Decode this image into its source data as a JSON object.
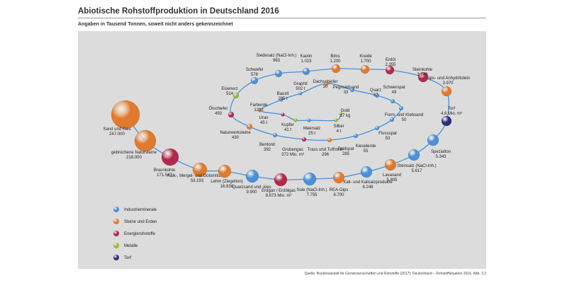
{
  "chart_data": {
    "type": "bubble-spiral",
    "title": "Abiotische Rohstoffproduktion in Deutschland 2016",
    "subtitle": "Angaben in Tausend Tonnen, soweit nicht anders gekennzeichnet",
    "source": "Quelle: Bundesanstalt für Geowissenschaften und Rohstoffe (2017): Deutschland – Rohstoffsituation 2016, Abb. 3.2",
    "colors": {
      "Industrieminerale": "#4a90d9",
      "Steine und Erden": "#e07a2e",
      "Energierohstoffe": "#b22a4a",
      "Metalle": "#9ab832",
      "Torf": "#2e2e7a"
    },
    "legend": [
      {
        "label": "Industrieminerale",
        "category": "Industrieminerale"
      },
      {
        "label": "Steine und Erden",
        "category": "Steine und Erden"
      },
      {
        "label": "Energierohstoffe",
        "category": "Energierohstoffe"
      },
      {
        "label": "Metalle",
        "category": "Metalle"
      },
      {
        "label": "Torf",
        "category": "Torf"
      }
    ],
    "points": [
      {
        "name": "Sand und Kies",
        "value": "247.000",
        "amount": 247000,
        "category": "Steine und Erden"
      },
      {
        "name": "gebrochene Natursteine",
        "value": "218.000",
        "amount": 218000,
        "category": "Steine und Erden"
      },
      {
        "name": "Braunkohle",
        "value": "171.547",
        "amount": 171547,
        "category": "Energierohstoffe"
      },
      {
        "name": "Kalk-, Mergel- und Dolomitstein",
        "value": "53.193",
        "amount": 53193,
        "category": "Steine und Erden"
      },
      {
        "name": "Lehm (Ziegelton)",
        "value": "16.838",
        "amount": 16838,
        "category": "Steine und Erden"
      },
      {
        "name": "Quarzsand und -kies",
        "value": "9.900",
        "amount": 9900,
        "category": "Industrieminerale"
      },
      {
        "name": "Erdgas / Erdölgas",
        "value": "8.673 Mio. m³",
        "amount": 8673,
        "category": "Energierohstoffe"
      },
      {
        "name": "Sole (NaCl-Inh.)",
        "value": "7.755",
        "amount": 7755,
        "category": "Industrieminerale"
      },
      {
        "name": "REA-Gips",
        "value": "6.700",
        "amount": 6700,
        "category": "Steine und Erden"
      },
      {
        "name": "Kali- und Kalisalzprodukte",
        "value": "6.246",
        "amount": 6246,
        "category": "Industrieminerale"
      },
      {
        "name": "Lavasand",
        "value": "5.805",
        "amount": 5805,
        "category": "Steine und Erden"
      },
      {
        "name": "Steinsalz (NaCl-Inh.)",
        "value": "5.617",
        "amount": 5617,
        "category": "Industrieminerale"
      },
      {
        "name": "Spezialton",
        "value": "5.343",
        "amount": 5343,
        "category": "Industrieminerale"
      },
      {
        "name": "Torf",
        "value": "4,6 Mio. m³",
        "amount": 4600,
        "category": "Torf"
      },
      {
        "name": "Gips- und Anhydritstein",
        "value": "3.970",
        "amount": 3970,
        "category": "Steine und Erden"
      },
      {
        "name": "Steinkohle",
        "value": "3.849",
        "amount": 3849,
        "category": "Energierohstoffe"
      },
      {
        "name": "Erdöl",
        "value": "2.355",
        "amount": 2355,
        "category": "Energierohstoffe"
      },
      {
        "name": "Kreide",
        "value": "1.700",
        "amount": 1700,
        "category": "Steine und Erden"
      },
      {
        "name": "Bims",
        "value": "1.200",
        "amount": 1200,
        "category": "Steine und Erden"
      },
      {
        "name": "Kaolin",
        "value": "1.023",
        "amount": 1023,
        "category": "Industrieminerale"
      },
      {
        "name": "Siedesalz (NaCl-Inh.)",
        "value": "963",
        "amount": 963,
        "category": "Industrieminerale"
      },
      {
        "name": "Schwefel",
        "value": "578",
        "amount": 578,
        "category": "Industrieminerale"
      },
      {
        "name": "Eisenerz",
        "value": "514",
        "amount": 514,
        "category": "Metalle"
      },
      {
        "name": "Ölschiefer",
        "value": "493",
        "amount": 493,
        "category": "Energierohstoffe"
      },
      {
        "name": "Naturwerksteine",
        "value": "430",
        "amount": 430,
        "category": "Steine und Erden"
      },
      {
        "name": "Bentonit",
        "value": "392",
        "amount": 392,
        "category": "Industrieminerale"
      },
      {
        "name": "Grubengas",
        "value": "372 Mio. m³",
        "amount": 372,
        "category": "Energierohstoffe"
      },
      {
        "name": "Trass und Tuffstein",
        "value": "296",
        "amount": 296,
        "category": "Steine und Erden"
      },
      {
        "name": "Feldspat",
        "value": "285",
        "amount": 285,
        "category": "Industrieminerale"
      },
      {
        "name": "Kieselerde",
        "value": "55",
        "amount": 55,
        "category": "Industrieminerale"
      },
      {
        "name": "Flussspat",
        "value": "53",
        "amount": 53,
        "category": "Industrieminerale"
      },
      {
        "name": "Form- und Klebsand",
        "value": "50",
        "amount": 50,
        "category": "Industrieminerale"
      },
      {
        "name": "Schwerspat",
        "value": "49",
        "amount": 49,
        "category": "Industrieminerale"
      },
      {
        "name": "Quarz",
        "value": "37",
        "amount": 37,
        "category": "Industrieminerale"
      },
      {
        "name": "Pegmatitsand",
        "value": "33",
        "amount": 33,
        "category": "Industrieminerale"
      },
      {
        "name": "Dachschiefer",
        "value": "30",
        "amount": 30,
        "category": "Steine und Erden"
      },
      {
        "name": "Graphit",
        "value": "502 t",
        "amount": 0.502,
        "category": "Industrieminerale"
      },
      {
        "name": "Bauxit",
        "value": "295 t",
        "amount": 0.295,
        "category": "Industrieminerale"
      },
      {
        "name": "Farberde",
        "value": "129 t",
        "amount": 0.129,
        "category": "Steine und Erden"
      },
      {
        "name": "Uran",
        "value": "45 t",
        "amount": 0.045,
        "category": "Energierohstoffe"
      },
      {
        "name": "Kupfer",
        "value": "41 t",
        "amount": 0.041,
        "category": "Metalle"
      },
      {
        "name": "Meersalz",
        "value": "25 t",
        "amount": 0.025,
        "category": "Industrieminerale"
      },
      {
        "name": "Silber",
        "value": "4 t",
        "amount": 0.004,
        "category": "Metalle"
      },
      {
        "name": "Gold",
        "value": "17 kg",
        "amount": 1.7e-05,
        "category": "Metalle"
      }
    ]
  }
}
